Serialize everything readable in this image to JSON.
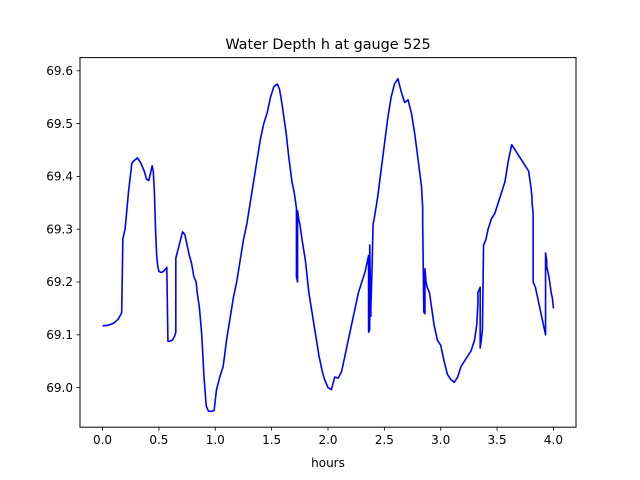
{
  "chart_data": {
    "type": "line",
    "title": "Water Depth h at gauge 525",
    "xlabel": "hours",
    "ylabel": "",
    "xlim": [
      -0.2,
      4.2
    ],
    "ylim": [
      68.925,
      69.625
    ],
    "xticks": [
      "0.0",
      "0.5",
      "1.0",
      "1.5",
      "2.0",
      "2.5",
      "3.0",
      "3.5",
      "4.0"
    ],
    "yticks": [
      "69.0",
      "69.1",
      "69.2",
      "69.3",
      "69.4",
      "69.5",
      "69.6"
    ],
    "grid": false,
    "series": [
      {
        "color": "#0000ff",
        "x": [
          0.0,
          0.05,
          0.1,
          0.14,
          0.17,
          0.18,
          0.18,
          0.2,
          0.23,
          0.26,
          0.28,
          0.31,
          0.34,
          0.37,
          0.39,
          0.41,
          0.43,
          0.44,
          0.45,
          0.46,
          0.47,
          0.48,
          0.49,
          0.5,
          0.52,
          0.54,
          0.56,
          0.57,
          0.58,
          0.59,
          0.6,
          0.62,
          0.64,
          0.65,
          0.65,
          0.68,
          0.71,
          0.73,
          0.75,
          0.77,
          0.79,
          0.81,
          0.83,
          0.84,
          0.86,
          0.88,
          0.9,
          0.92,
          0.94,
          0.97,
          0.99,
          1.01,
          1.04,
          1.07,
          1.1,
          1.13,
          1.16,
          1.19,
          1.22,
          1.25,
          1.28,
          1.31,
          1.34,
          1.37,
          1.4,
          1.43,
          1.46,
          1.49,
          1.52,
          1.55,
          1.57,
          1.59,
          1.61,
          1.63,
          1.65,
          1.68,
          1.7,
          1.72,
          1.72,
          1.73,
          1.73,
          1.74,
          1.75,
          1.77,
          1.8,
          1.83,
          1.86,
          1.89,
          1.92,
          1.95,
          1.97,
          2.0,
          2.03,
          2.06,
          2.09,
          2.12,
          2.15,
          2.18,
          2.21,
          2.24,
          2.27,
          2.3,
          2.33,
          2.35,
          2.36,
          2.36,
          2.37,
          2.37,
          2.38,
          2.38,
          2.39,
          2.4,
          2.41,
          2.44,
          2.47,
          2.5,
          2.53,
          2.56,
          2.59,
          2.62,
          2.65,
          2.68,
          2.71,
          2.74,
          2.77,
          2.8,
          2.83,
          2.84,
          2.84,
          2.85,
          2.86,
          2.86,
          2.87,
          2.88,
          2.9,
          2.92,
          2.94,
          2.97,
          3.0,
          3.03,
          3.06,
          3.09,
          3.12,
          3.15,
          3.18,
          3.21,
          3.24,
          3.27,
          3.3,
          3.32,
          3.33,
          3.33,
          3.35,
          3.35,
          3.36,
          3.37,
          3.38,
          3.4,
          3.42,
          3.45,
          3.48,
          3.51,
          3.54,
          3.57,
          3.6,
          3.63,
          3.66,
          3.69,
          3.72,
          3.75,
          3.78,
          3.8,
          3.81,
          3.81,
          3.82,
          3.82,
          3.84,
          3.87,
          3.9,
          3.92,
          3.93,
          3.93,
          3.94,
          3.94,
          3.96,
          3.98,
          3.99,
          4.0
        ],
        "y": [
          69.117,
          69.118,
          69.122,
          69.13,
          69.142,
          69.282,
          69.282,
          69.3,
          69.37,
          69.425,
          69.43,
          69.435,
          69.425,
          69.41,
          69.395,
          69.392,
          69.41,
          69.42,
          69.41,
          69.37,
          69.3,
          69.25,
          69.23,
          69.22,
          69.218,
          69.22,
          69.225,
          69.228,
          69.088,
          69.088,
          69.088,
          69.09,
          69.098,
          69.105,
          69.245,
          69.27,
          69.295,
          69.29,
          69.27,
          69.25,
          69.235,
          69.21,
          69.2,
          69.18,
          69.15,
          69.1,
          69.02,
          68.965,
          68.955,
          68.955,
          68.957,
          68.995,
          69.02,
          69.04,
          69.09,
          69.13,
          69.17,
          69.2,
          69.24,
          69.28,
          69.31,
          69.35,
          69.39,
          69.43,
          69.47,
          69.5,
          69.52,
          69.55,
          69.57,
          69.575,
          69.565,
          69.54,
          69.51,
          69.48,
          69.44,
          69.39,
          69.37,
          69.34,
          69.21,
          69.2,
          69.335,
          69.32,
          69.31,
          69.28,
          69.24,
          69.18,
          69.14,
          69.1,
          69.06,
          69.03,
          69.015,
          69.0,
          68.996,
          69.02,
          69.018,
          69.03,
          69.06,
          69.09,
          69.12,
          69.15,
          69.18,
          69.2,
          69.22,
          69.24,
          69.25,
          69.105,
          69.11,
          69.27,
          69.135,
          69.15,
          69.22,
          69.31,
          69.32,
          69.36,
          69.41,
          69.46,
          69.51,
          69.55,
          69.575,
          69.585,
          69.56,
          69.54,
          69.545,
          69.52,
          69.48,
          69.43,
          69.38,
          69.34,
          69.31,
          69.143,
          69.14,
          69.225,
          69.2,
          69.19,
          69.18,
          69.15,
          69.12,
          69.09,
          69.08,
          69.05,
          69.025,
          69.015,
          69.01,
          69.02,
          69.04,
          69.05,
          69.06,
          69.07,
          69.09,
          69.12,
          69.16,
          69.18,
          69.19,
          69.075,
          69.09,
          69.11,
          69.27,
          69.28,
          69.3,
          69.32,
          69.33,
          69.35,
          69.37,
          69.39,
          69.43,
          69.46,
          69.45,
          69.44,
          69.43,
          69.42,
          69.41,
          69.38,
          69.36,
          69.35,
          69.33,
          69.2,
          69.19,
          69.16,
          69.13,
          69.11,
          69.1,
          69.255,
          69.24,
          69.23,
          69.21,
          69.18,
          69.17,
          69.15
        ]
      }
    ]
  }
}
